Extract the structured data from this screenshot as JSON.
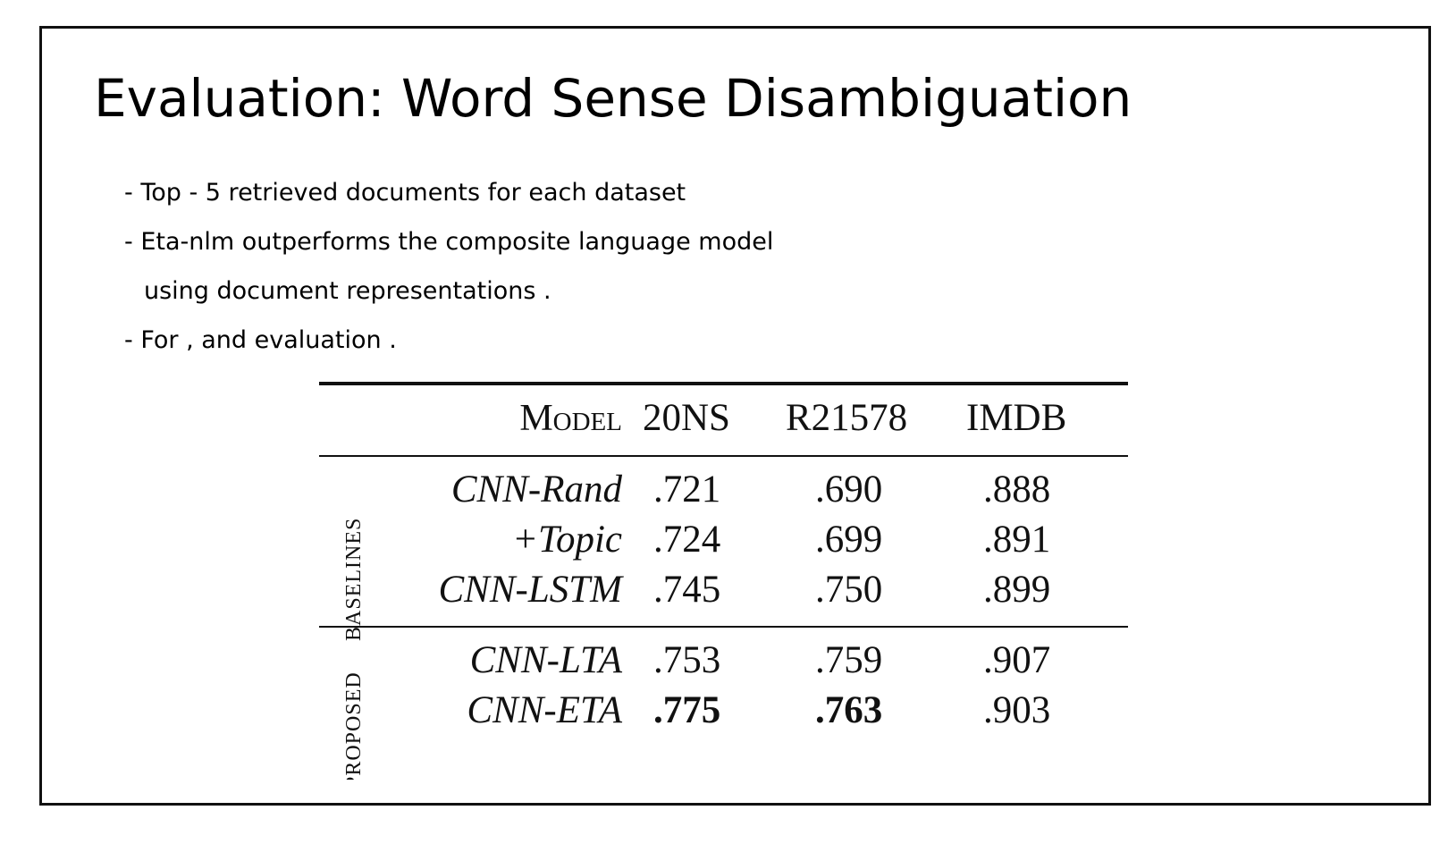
{
  "slide": {
    "title": "Evaluation: Word Sense Disambiguation",
    "bullets": [
      "- Top - 5 retrieved documents for each dataset",
      "- Eta-nlm outperforms the composite language model",
      "using document representations .",
      "- For , and evaluation ."
    ]
  },
  "table": {
    "headers": [
      "Model",
      "20NS",
      "R21578",
      "IMDB"
    ],
    "groups": [
      {
        "label": "BASELINES",
        "rows": [
          {
            "model": "CNN-Rand",
            "values": [
              ".721",
              ".690",
              ".888"
            ]
          },
          {
            "model": "+Topic",
            "values": [
              ".724",
              ".699",
              ".891"
            ]
          },
          {
            "model": "CNN-LSTM",
            "values": [
              ".745",
              ".750",
              ".899"
            ]
          }
        ]
      },
      {
        "label": "PROPOSED",
        "rows": [
          {
            "model": "CNN-LTA",
            "values": [
              ".753",
              ".759",
              ".907"
            ]
          },
          {
            "model": "CNN-ETA",
            "values": [
              ".775",
              ".763",
              ".903"
            ],
            "bold": [
              true,
              true,
              false
            ]
          }
        ]
      }
    ]
  }
}
